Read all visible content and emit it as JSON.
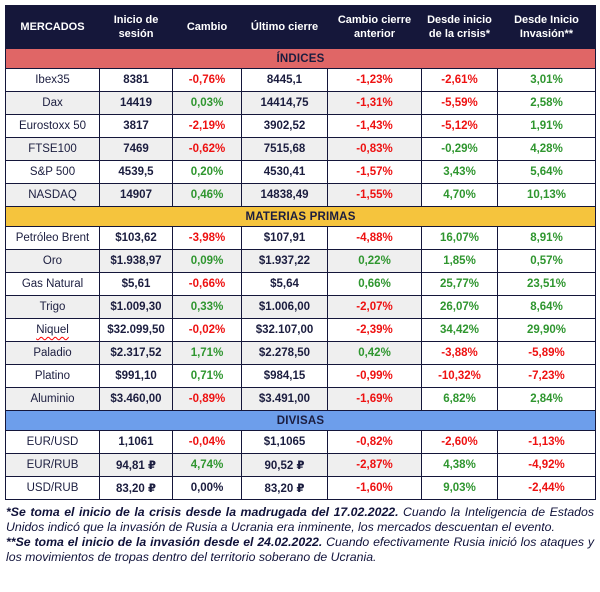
{
  "colors": {
    "header_bg": "#15173a",
    "indices_bar": "#e06666",
    "materias_bar": "#f5c43d",
    "divisas_bar": "#6d9eeb",
    "negative": "#ee1111",
    "positive": "#2f962f",
    "neutral": "#1b1d3f",
    "row_alt": "#efefef"
  },
  "chart_data": {
    "type": "table",
    "columns": [
      "MERCADOS",
      "Inicio de sesión",
      "Cambio",
      "Último cierre",
      "Cambio cierre anterior",
      "Desde inicio de la crisis*",
      "Desde Inicio Invasión**"
    ],
    "sections": [
      {
        "title": "ÍNDICES",
        "color": "#e06666",
        "rows": [
          {
            "label": "Ibex35",
            "cells": [
              {
                "v": "8381",
                "c": "neutral"
              },
              {
                "v": "-0,76%",
                "c": "negative"
              },
              {
                "v": "8445,1",
                "c": "neutral"
              },
              {
                "v": "-1,23%",
                "c": "negative"
              },
              {
                "v": "-2,61%",
                "c": "negative"
              },
              {
                "v": "3,01%",
                "c": "positive"
              }
            ]
          },
          {
            "label": "Dax",
            "cells": [
              {
                "v": "14419",
                "c": "neutral"
              },
              {
                "v": "0,03%",
                "c": "positive"
              },
              {
                "v": "14414,75",
                "c": "neutral"
              },
              {
                "v": "-1,31%",
                "c": "negative"
              },
              {
                "v": "-5,59%",
                "c": "negative"
              },
              {
                "v": "2,58%",
                "c": "positive"
              }
            ]
          },
          {
            "label": "Eurostoxx 50",
            "cells": [
              {
                "v": "3817",
                "c": "neutral"
              },
              {
                "v": "-2,19%",
                "c": "negative"
              },
              {
                "v": "3902,52",
                "c": "neutral"
              },
              {
                "v": "-1,43%",
                "c": "negative"
              },
              {
                "v": "-5,12%",
                "c": "negative"
              },
              {
                "v": "1,91%",
                "c": "positive"
              }
            ]
          },
          {
            "label": "FTSE100",
            "cells": [
              {
                "v": "7469",
                "c": "neutral"
              },
              {
                "v": "-0,62%",
                "c": "negative"
              },
              {
                "v": "7515,68",
                "c": "neutral"
              },
              {
                "v": "-0,83%",
                "c": "negative"
              },
              {
                "v": "-0,29%",
                "c": "positive"
              },
              {
                "v": "4,28%",
                "c": "positive"
              }
            ]
          },
          {
            "label": "S&P 500",
            "cells": [
              {
                "v": "4539,5",
                "c": "neutral"
              },
              {
                "v": "0,20%",
                "c": "positive"
              },
              {
                "v": "4530,41",
                "c": "neutral"
              },
              {
                "v": "-1,57%",
                "c": "negative"
              },
              {
                "v": "3,43%",
                "c": "positive"
              },
              {
                "v": "5,64%",
                "c": "positive"
              }
            ]
          },
          {
            "label": "NASDAQ",
            "cells": [
              {
                "v": "14907",
                "c": "neutral"
              },
              {
                "v": "0,46%",
                "c": "positive"
              },
              {
                "v": "14838,49",
                "c": "neutral"
              },
              {
                "v": "-1,55%",
                "c": "negative"
              },
              {
                "v": "4,70%",
                "c": "positive"
              },
              {
                "v": "10,13%",
                "c": "positive"
              }
            ]
          }
        ]
      },
      {
        "title": "MATERIAS PRIMAS",
        "color": "#f5c43d",
        "rows": [
          {
            "label": "Petróleo Brent",
            "cells": [
              {
                "v": "$103,62",
                "c": "neutral"
              },
              {
                "v": "-3,98%",
                "c": "negative"
              },
              {
                "v": "$107,91",
                "c": "neutral"
              },
              {
                "v": "-4,88%",
                "c": "negative"
              },
              {
                "v": "16,07%",
                "c": "positive"
              },
              {
                "v": "8,91%",
                "c": "positive"
              }
            ]
          },
          {
            "label": "Oro",
            "cells": [
              {
                "v": "$1.938,97",
                "c": "neutral"
              },
              {
                "v": "0,09%",
                "c": "positive"
              },
              {
                "v": "$1.937,22",
                "c": "neutral"
              },
              {
                "v": "0,22%",
                "c": "positive"
              },
              {
                "v": "1,85%",
                "c": "positive"
              },
              {
                "v": "0,57%",
                "c": "positive"
              }
            ]
          },
          {
            "label": "Gas Natural",
            "cells": [
              {
                "v": "$5,61",
                "c": "neutral"
              },
              {
                "v": "-0,66%",
                "c": "negative"
              },
              {
                "v": "$5,64",
                "c": "neutral"
              },
              {
                "v": "0,66%",
                "c": "positive"
              },
              {
                "v": "25,77%",
                "c": "positive"
              },
              {
                "v": "23,51%",
                "c": "positive"
              }
            ]
          },
          {
            "label": "Trigo",
            "cells": [
              {
                "v": "$1.009,30",
                "c": "neutral"
              },
              {
                "v": "0,33%",
                "c": "positive"
              },
              {
                "v": "$1.006,00",
                "c": "neutral"
              },
              {
                "v": "-2,07%",
                "c": "negative"
              },
              {
                "v": "26,07%",
                "c": "positive"
              },
              {
                "v": "8,64%",
                "c": "positive"
              }
            ]
          },
          {
            "label": "Niquel",
            "misspelled": true,
            "cells": [
              {
                "v": "$32.099,50",
                "c": "neutral"
              },
              {
                "v": "-0,02%",
                "c": "negative"
              },
              {
                "v": "$32.107,00",
                "c": "neutral"
              },
              {
                "v": "-2,39%",
                "c": "negative"
              },
              {
                "v": "34,42%",
                "c": "positive"
              },
              {
                "v": "29,90%",
                "c": "positive"
              }
            ]
          },
          {
            "label": "Paladio",
            "cells": [
              {
                "v": "$2.317,52",
                "c": "neutral"
              },
              {
                "v": "1,71%",
                "c": "positive"
              },
              {
                "v": "$2.278,50",
                "c": "neutral"
              },
              {
                "v": "0,42%",
                "c": "positive"
              },
              {
                "v": "-3,88%",
                "c": "negative"
              },
              {
                "v": "-5,89%",
                "c": "negative"
              }
            ]
          },
          {
            "label": "Platino",
            "cells": [
              {
                "v": "$991,10",
                "c": "neutral"
              },
              {
                "v": "0,71%",
                "c": "positive"
              },
              {
                "v": "$984,15",
                "c": "neutral"
              },
              {
                "v": "-0,99%",
                "c": "negative"
              },
              {
                "v": "-10,32%",
                "c": "negative"
              },
              {
                "v": "-7,23%",
                "c": "negative"
              }
            ]
          },
          {
            "label": "Aluminio",
            "cells": [
              {
                "v": "$3.460,00",
                "c": "neutral"
              },
              {
                "v": "-0,89%",
                "c": "negative"
              },
              {
                "v": "$3.491,00",
                "c": "neutral"
              },
              {
                "v": "-1,69%",
                "c": "negative"
              },
              {
                "v": "6,82%",
                "c": "positive"
              },
              {
                "v": "2,84%",
                "c": "positive"
              }
            ]
          }
        ]
      },
      {
        "title": "DIVISAS",
        "color": "#6d9eeb",
        "rows": [
          {
            "label": "EUR/USD",
            "cells": [
              {
                "v": "1,1061",
                "c": "neutral"
              },
              {
                "v": "-0,04%",
                "c": "negative"
              },
              {
                "v": "$1,1065",
                "c": "neutral"
              },
              {
                "v": "-0,82%",
                "c": "negative"
              },
              {
                "v": "-2,60%",
                "c": "negative"
              },
              {
                "v": "-1,13%",
                "c": "negative"
              }
            ]
          },
          {
            "label": "EUR/RUB",
            "cells": [
              {
                "v": "94,81 ₽",
                "c": "neutral"
              },
              {
                "v": "4,74%",
                "c": "positive"
              },
              {
                "v": "90,52 ₽",
                "c": "neutral"
              },
              {
                "v": "-2,87%",
                "c": "negative"
              },
              {
                "v": "4,38%",
                "c": "positive"
              },
              {
                "v": "-4,92%",
                "c": "negative"
              }
            ]
          },
          {
            "label": "USD/RUB",
            "cells": [
              {
                "v": "83,20 ₽",
                "c": "neutral"
              },
              {
                "v": "0,00%",
                "c": "neutral"
              },
              {
                "v": "83,20 ₽",
                "c": "neutral"
              },
              {
                "v": "-1,60%",
                "c": "negative"
              },
              {
                "v": "9,03%",
                "c": "positive"
              },
              {
                "v": "-2,44%",
                "c": "negative"
              }
            ]
          }
        ]
      }
    ]
  },
  "footnotes": [
    {
      "lead": "*Se toma el inicio de la crisis desde la madrugada del 17.02.2022.",
      "rest": " Cuando la Inteligencia de Estados Unidos indicó que la invasión de Rusia a Ucrania era inminente, los mercados descuentan el evento."
    },
    {
      "lead": "**Se toma el inicio de la invasión desde el 24.02.2022.",
      "rest": " Cuando efectivamente Rusia inició los ataques y los movimientos de tropas dentro del territorio soberano de Ucrania."
    }
  ]
}
